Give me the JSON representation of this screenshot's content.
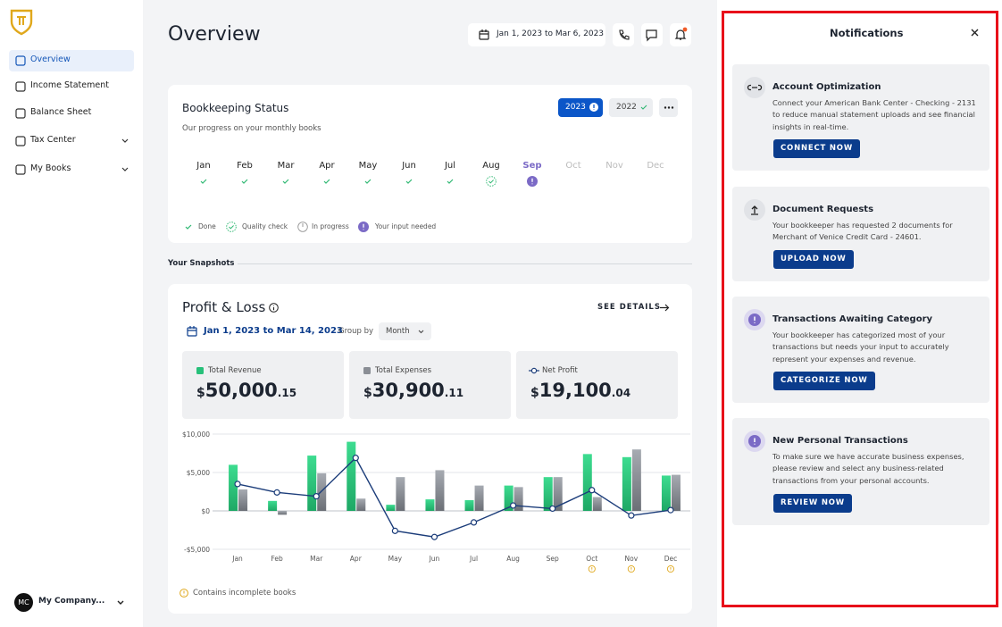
{
  "sidebar": {
    "nav": [
      {
        "label": "Overview",
        "active": true
      },
      {
        "label": "Income Statement"
      },
      {
        "label": "Balance Sheet"
      },
      {
        "label": "Tax Center",
        "expandable": true
      },
      {
        "label": "My Books",
        "expandable": true
      }
    ],
    "company": {
      "initials": "MC",
      "name": "My Company..."
    }
  },
  "header": {
    "title": "Overview",
    "date_range": "Jan 1, 2023 to Mar 6, 2023"
  },
  "bookkeeping": {
    "title": "Bookkeeping Status",
    "subtitle": "Our progress on your monthly books",
    "years": [
      {
        "label": "2023",
        "active": true
      },
      {
        "label": "2022"
      }
    ],
    "months": [
      {
        "label": "Jan",
        "status": "done"
      },
      {
        "label": "Feb",
        "status": "done"
      },
      {
        "label": "Mar",
        "status": "done"
      },
      {
        "label": "Apr",
        "status": "done"
      },
      {
        "label": "May",
        "status": "done"
      },
      {
        "label": "Jun",
        "status": "done"
      },
      {
        "label": "Jul",
        "status": "done"
      },
      {
        "label": "Aug",
        "status": "quality"
      },
      {
        "label": "Sep",
        "status": "input"
      },
      {
        "label": "Oct"
      },
      {
        "label": "Nov"
      },
      {
        "label": "Dec"
      }
    ],
    "legend": [
      {
        "status": "done",
        "label": "Done"
      },
      {
        "status": "quality",
        "label": "Quality check"
      },
      {
        "status": "progress",
        "label": "In progress"
      },
      {
        "status": "input",
        "label": "Your input needed"
      }
    ]
  },
  "snapshots": {
    "title": "Your Snapshots"
  },
  "pnl": {
    "title": "Profit & Loss",
    "see_details": "SEE DETAILS",
    "date_range": "Jan 1, 2023 to Mar 14, 2023",
    "group_by_label": "Group by",
    "group_by": "Month",
    "cards": [
      {
        "currency": "$",
        "whole": "50,000",
        "cents": ".15"
      },
      {
        "currency": "$",
        "whole": "30,900",
        "cents": ".11"
      },
      {
        "currency": "$",
        "whole": "19,100",
        "cents": ".04"
      }
    ],
    "footnote": "Contains incomplete books"
  },
  "chart_data": {
    "type": "bar-line",
    "categories": [
      "Jan",
      "Feb",
      "Mar",
      "Apr",
      "May",
      "Jun",
      "Jul",
      "Aug",
      "Sep",
      "Oct",
      "Nov",
      "Dec"
    ],
    "incomplete": [
      false,
      false,
      false,
      false,
      false,
      false,
      false,
      false,
      false,
      true,
      true,
      true
    ],
    "series": [
      {
        "name": "Total Revenue",
        "type": "bar",
        "color": "#27c07a",
        "values": [
          6000,
          1300,
          7200,
          9000,
          800,
          1500,
          1400,
          3300,
          4400,
          7400,
          7000,
          4600
        ]
      },
      {
        "name": "Total Expenses",
        "type": "bar",
        "color": "#8a8e95",
        "values": [
          2800,
          -500,
          4900,
          1600,
          4400,
          5300,
          3300,
          3100,
          4400,
          1800,
          8000,
          4700
        ]
      },
      {
        "name": "Net Profit",
        "type": "line",
        "color": "#1c3d7a",
        "values": [
          3500,
          2400,
          1900,
          6900,
          -2600,
          -3400,
          -1500,
          700,
          300,
          2700,
          -600,
          100
        ]
      }
    ],
    "ylim": [
      -5000,
      10000
    ],
    "yticks": [
      {
        "value": -5000,
        "label": "-$5,000"
      },
      {
        "value": 0,
        "label": "$0"
      },
      {
        "value": 5000,
        "label": "$5,000"
      },
      {
        "value": 10000,
        "label": "$10,000"
      }
    ],
    "grid": true
  },
  "notifications": {
    "title": "Notifications",
    "items": [
      {
        "title": "Account Optimization",
        "body": "Connect your American Bank Center - Checking - 2131 to reduce manual statement uploads and see financial insights in real-time.",
        "action": "CONNECT NOW"
      },
      {
        "title": "Document Requests",
        "body": "Your bookkeeper has requested 2 documents for Merchant of Venice Credit Card - 24601.",
        "action": "UPLOAD NOW"
      },
      {
        "title": "Transactions Awaiting Category",
        "body": "Your bookkeeper has categorized most of your transactions but needs your input to accurately represent your expenses and revenue.",
        "action": "CATEGORIZE NOW"
      },
      {
        "title": "New Personal Transactions",
        "body": "To make sure we have accurate business expenses, please review and select any business-related transactions from your personal accounts.",
        "action": "REVIEW NOW"
      }
    ]
  }
}
